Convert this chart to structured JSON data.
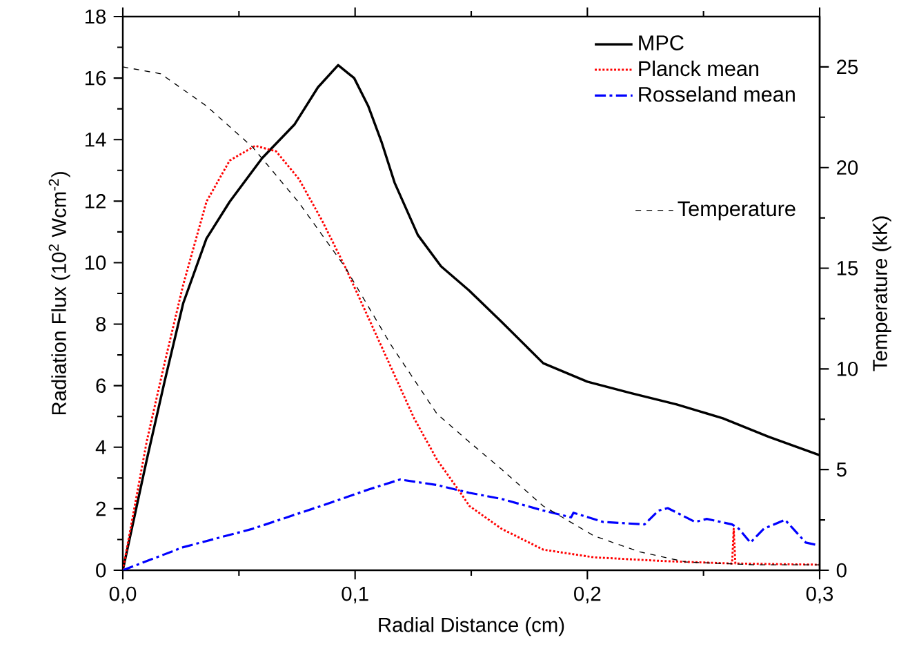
{
  "chart_data": {
    "type": "line",
    "xlabel": "Radial Distance (cm)",
    "ylabel": "Radiation Flux (10$^{2}$ Wcm$^{-2}$)",
    "y2label": "Temperature (kK)",
    "xlim": [
      0,
      0.3
    ],
    "xticks": [
      {
        "value": 0,
        "label": "0,0"
      },
      {
        "value": 0.1,
        "label": "0,1"
      },
      {
        "value": 0.2,
        "label": "0,2"
      },
      {
        "value": 0.3,
        "label": "0,3"
      }
    ],
    "ylim": [
      0,
      18
    ],
    "yticks": [
      0,
      2,
      4,
      6,
      8,
      10,
      12,
      14,
      16,
      18
    ],
    "y2lim": [
      0,
      27.5
    ],
    "y2ticks": [
      0,
      5,
      10,
      15,
      20,
      25
    ],
    "legend": "top right",
    "series": [
      {
        "name": "MPC",
        "color": "#000000",
        "line_style": "solid",
        "x": [
          0,
          0.0103,
          0.018,
          0.026,
          0.036,
          0.046,
          0.06,
          0.074,
          0.084,
          0.0927,
          0.0996,
          0.1056,
          0.1115,
          0.117,
          0.127,
          0.137,
          0.149,
          0.163,
          0.181,
          0.2,
          0.2187,
          0.2385,
          0.2583,
          0.278,
          0.3
        ],
        "values": [
          0,
          3.59,
          6.14,
          8.68,
          10.78,
          11.98,
          13.4,
          14.5,
          15.7,
          16.42,
          16.0,
          15.1,
          13.9,
          12.6,
          10.9,
          9.88,
          9.1,
          8.08,
          6.73,
          6.13,
          5.76,
          5.39,
          4.94,
          4.34,
          3.74
        ]
      },
      {
        "name": "Planck mean",
        "color": "#ff0000",
        "line_style": "dotted",
        "x": [
          0,
          0.0103,
          0.018,
          0.026,
          0.036,
          0.046,
          0.057,
          0.066,
          0.0758,
          0.0857,
          0.0956,
          0.1056,
          0.1155,
          0.1254,
          0.1353,
          0.1452,
          0.1492,
          0.163,
          0.181,
          0.2028,
          0.2325,
          0.2623,
          0.263,
          0.2637,
          0.3
        ],
        "values": [
          0,
          4.19,
          6.74,
          9.28,
          11.98,
          13.32,
          13.8,
          13.62,
          12.72,
          11.38,
          9.88,
          8.23,
          6.59,
          4.94,
          3.59,
          2.54,
          2.09,
          1.35,
          0.67,
          0.42,
          0.3,
          0.22,
          1.35,
          0.22,
          0.18
        ]
      },
      {
        "name": "Rosseland mean",
        "color": "#0000ff",
        "line_style": "dashdot",
        "x": [
          0,
          0.026,
          0.056,
          0.0857,
          0.1056,
          0.1194,
          0.1353,
          0.149,
          0.163,
          0.181,
          0.193,
          0.194,
          0.2068,
          0.2246,
          0.2306,
          0.2346,
          0.2464,
          0.2514,
          0.2623,
          0.2652,
          0.2702,
          0.276,
          0.2851,
          0.294,
          0.2989
        ],
        "values": [
          0,
          0.75,
          1.35,
          2.1,
          2.62,
          2.95,
          2.77,
          2.52,
          2.32,
          1.94,
          1.72,
          1.87,
          1.57,
          1.49,
          1.94,
          2.02,
          1.57,
          1.67,
          1.49,
          1.35,
          0.9,
          1.35,
          1.64,
          0.9,
          0.82
        ]
      },
      {
        "name": "Temperature",
        "color": "#000000",
        "line_style": "dashed",
        "axis": "y2",
        "x": [
          0,
          0.0163,
          0.036,
          0.056,
          0.0758,
          0.0956,
          0.1155,
          0.1353,
          0.149,
          0.163,
          0.181,
          0.2028,
          0.2226,
          0.2425,
          0.272,
          0.3
        ],
        "values": [
          25.0,
          24.66,
          23.06,
          21.0,
          18.26,
          15.07,
          11.18,
          7.76,
          6.39,
          5.02,
          3.19,
          1.71,
          0.91,
          0.41,
          0.27,
          0.27
        ]
      }
    ]
  }
}
